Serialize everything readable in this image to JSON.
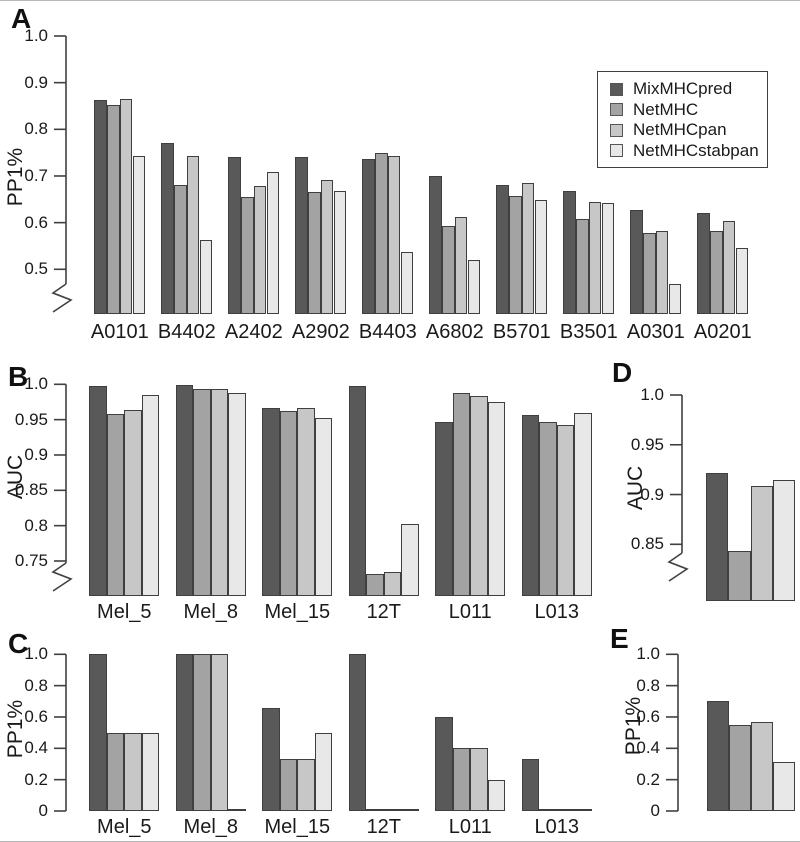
{
  "figure": {
    "background": "#ffffff"
  },
  "colors": {
    "axis": "#404040",
    "bar_border": "#3f3f3f",
    "text": "#1a1a1a"
  },
  "legend": {
    "entries": [
      {
        "label": "MixMHCpred",
        "color": "#595959"
      },
      {
        "label": "NetMHC",
        "color": "#a3a3a3"
      },
      {
        "label": "NetMHCpan",
        "color": "#c7c7c7"
      },
      {
        "label": "NetMHCstabpan",
        "color": "#e8e8e8"
      }
    ]
  },
  "chart_data": [
    {
      "id": "a",
      "letter": "A",
      "type": "bar",
      "ylabel": "PP1%",
      "yticks": [
        "1.0",
        "0.9",
        "0.8",
        "0.7",
        "0.6",
        "0.5"
      ],
      "ylim": [
        0.45,
        1.0
      ],
      "axis_break": true,
      "grid": false,
      "legend_position": "upper-right",
      "categories": [
        "A0101",
        "B4402",
        "A2402",
        "A2902",
        "B4403",
        "A6802",
        "B5701",
        "B3501",
        "A0301",
        "A0201"
      ],
      "series": [
        {
          "name": "MixMHCpred",
          "values": [
            0.862,
            0.77,
            0.741,
            0.74,
            0.736,
            0.7,
            0.68,
            0.667,
            0.627,
            0.62
          ]
        },
        {
          "name": "NetMHC",
          "values": [
            0.853,
            0.68,
            0.656,
            0.665,
            0.75,
            0.592,
            0.657,
            0.608,
            0.578,
            0.583
          ]
        },
        {
          "name": "NetMHCpan",
          "values": [
            0.865,
            0.742,
            0.679,
            0.691,
            0.742,
            0.612,
            0.685,
            0.645,
            0.583,
            0.603
          ]
        },
        {
          "name": "NetMHCstabpan",
          "values": [
            0.743,
            0.563,
            0.708,
            0.667,
            0.538,
            0.52,
            0.648,
            0.642,
            0.468,
            0.546
          ]
        }
      ]
    },
    {
      "id": "b",
      "letter": "B",
      "type": "bar",
      "ylabel": "AUC",
      "yticks": [
        "1.0",
        "0.95",
        "0.9",
        "0.85",
        "0.8",
        "0.75"
      ],
      "ylim": [
        0.72,
        1.0
      ],
      "axis_break": true,
      "grid": false,
      "categories": [
        "Mel_5",
        "Mel_8",
        "Mel_15",
        "12T",
        "L011",
        "L013"
      ],
      "series": [
        {
          "name": "MixMHCpred",
          "values": [
            0.998,
            0.999,
            0.966,
            0.997,
            0.947,
            0.957
          ]
        },
        {
          "name": "NetMHC",
          "values": [
            0.958,
            0.993,
            0.962,
            0.732,
            0.987,
            0.946
          ]
        },
        {
          "name": "NetMHCpan",
          "values": [
            0.964,
            0.994,
            0.966,
            0.735,
            0.983,
            0.943
          ]
        },
        {
          "name": "NetMHCstabpan",
          "values": [
            0.985,
            0.988,
            0.952,
            0.802,
            0.975,
            0.96
          ]
        }
      ]
    },
    {
      "id": "c",
      "letter": "C",
      "type": "bar",
      "ylabel": "PP1%",
      "yticks": [
        "1.0",
        "0.8",
        "0.6",
        "0.4",
        "0.2",
        "0"
      ],
      "ylim": [
        0,
        1.0
      ],
      "axis_break": false,
      "grid": false,
      "categories": [
        "Mel_5",
        "Mel_8",
        "Mel_15",
        "12T",
        "L011",
        "L013"
      ],
      "series": [
        {
          "name": "MixMHCpred",
          "values": [
            1.0,
            1.0,
            0.66,
            1.0,
            0.6,
            0.33
          ]
        },
        {
          "name": "NetMHC",
          "values": [
            0.5,
            1.0,
            0.33,
            0,
            0.4,
            0
          ]
        },
        {
          "name": "NetMHCpan",
          "values": [
            0.5,
            1.0,
            0.33,
            0,
            0.4,
            0
          ]
        },
        {
          "name": "NetMHCstabpan",
          "values": [
            0.5,
            0,
            0.5,
            0,
            0.2,
            0
          ]
        }
      ]
    },
    {
      "id": "d",
      "letter": "D",
      "type": "bar",
      "ylabel": "AUC",
      "yticks": [
        "1.0",
        "0.95",
        "0.9",
        "0.85"
      ],
      "ylim": [
        0.82,
        1.0
      ],
      "axis_break": true,
      "grid": false,
      "categories": [
        ""
      ],
      "series": [
        {
          "name": "MixMHCpred",
          "values": [
            0.922
          ]
        },
        {
          "name": "NetMHC",
          "values": [
            0.843
          ]
        },
        {
          "name": "NetMHCpan",
          "values": [
            0.909
          ]
        },
        {
          "name": "NetMHCstabpan",
          "values": [
            0.915
          ]
        }
      ]
    },
    {
      "id": "e",
      "letter": "E",
      "type": "bar",
      "ylabel": "PP1%",
      "yticks": [
        "1.0",
        "0.8",
        "0.6",
        "0.4",
        "0.2",
        "0"
      ],
      "ylim": [
        0,
        1.0
      ],
      "axis_break": false,
      "grid": false,
      "categories": [
        ""
      ],
      "series": [
        {
          "name": "MixMHCpred",
          "values": [
            0.7
          ]
        },
        {
          "name": "NetMHC",
          "values": [
            0.55
          ]
        },
        {
          "name": "NetMHCpan",
          "values": [
            0.57
          ]
        },
        {
          "name": "NetMHCstabpan",
          "values": [
            0.31
          ]
        }
      ]
    }
  ]
}
